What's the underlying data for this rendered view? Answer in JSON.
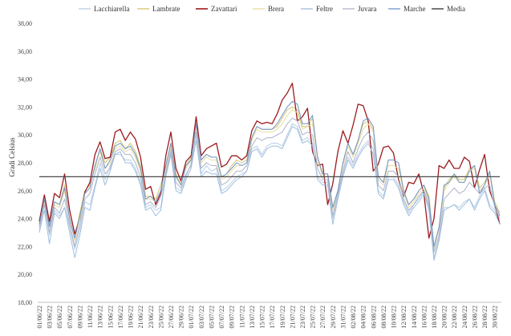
{
  "chart_data": {
    "type": "line",
    "ylabel": "Gradi Celsius",
    "ylim": [
      18,
      38
    ],
    "ytick_values": [
      18,
      20,
      22,
      24,
      26,
      28,
      30,
      32,
      34,
      36,
      38
    ],
    "ytick_labels": [
      "18,00",
      "20,00",
      "22,00",
      "24,00",
      "26,00",
      "28,00",
      "30,00",
      "32,00",
      "34,00",
      "36,00",
      "38,00"
    ],
    "grid": false,
    "legend_position": "top",
    "x": [
      "01/06/22",
      "02/06/22",
      "03/06/22",
      "04/06/22",
      "05/06/22",
      "06/06/22",
      "07/06/22",
      "08/06/22",
      "09/06/22",
      "10/06/22",
      "11/06/22",
      "12/06/22",
      "13/06/22",
      "14/06/22",
      "15/06/22",
      "16/06/22",
      "17/06/22",
      "18/06/22",
      "19/06/22",
      "20/06/22",
      "21/06/22",
      "22/06/22",
      "23/06/22",
      "24/06/22",
      "25/06/22",
      "26/06/22",
      "27/06/22",
      "28/06/22",
      "29/06/22",
      "30/06/22",
      "01/07/22",
      "02/07/22",
      "03/07/22",
      "04/07/22",
      "05/07/22",
      "06/07/22",
      "07/07/22",
      "08/07/22",
      "09/07/22",
      "10/07/22",
      "11/07/22",
      "12/07/22",
      "13/07/22",
      "14/07/22",
      "15/07/22",
      "16/07/22",
      "17/07/22",
      "18/07/22",
      "19/07/22",
      "20/07/22",
      "21/07/22",
      "22/07/22",
      "23/07/22",
      "24/07/22",
      "25/07/22",
      "26/07/22",
      "27/07/22",
      "28/07/22",
      "29/07/22",
      "30/07/22",
      "31/07/22",
      "01/08/22",
      "02/08/22",
      "03/08/22",
      "04/08/22",
      "05/08/22",
      "06/08/22",
      "07/08/22",
      "08/08/22",
      "09/08/22",
      "10/08/22",
      "11/08/22",
      "12/08/22",
      "13/08/22",
      "14/08/22",
      "15/08/22",
      "16/08/22",
      "17/08/22",
      "18/08/22",
      "19/08/22",
      "20/08/22",
      "21/08/22",
      "22/08/22",
      "23/08/22",
      "24/08/22",
      "25/08/22",
      "26/08/22",
      "27/08/22",
      "28/08/22",
      "29/08/22",
      "30/08/22",
      "31/08/22"
    ],
    "xtick_labels": [
      "01/06/22",
      "03/06/22",
      "05/06/22",
      "07/06/22",
      "09/06/22",
      "11/06/22",
      "13/06/22",
      "15/06/22",
      "17/06/22",
      "19/06/22",
      "21/06/22",
      "23/06/22",
      "25/06/22",
      "27/06/22",
      "29/06/22",
      "01/07/22",
      "03/07/22",
      "05/07/22",
      "07/07/22",
      "09/07/22",
      "11/07/22",
      "13/07/22",
      "15/07/22",
      "17/07/22",
      "19/07/22",
      "21/07/22",
      "23/07/22",
      "25/07/22",
      "27/07/22",
      "29/07/22",
      "31/07/22",
      "02/08/22",
      "04/08/22",
      "06/08/22",
      "08/08/22",
      "10/08/22",
      "12/08/22",
      "14/08/22",
      "16/08/22",
      "18/08/22",
      "20/08/22",
      "22/08/22",
      "24/08/22",
      "26/08/22",
      "28/08/22",
      "30/08/22"
    ],
    "series": [
      {
        "name": "Lacchiarella",
        "color": "#b9cde4",
        "width": 1,
        "values": [
          23.2,
          25.0,
          22.8,
          24.6,
          24.2,
          24.8,
          23.4,
          21.8,
          23.2,
          25.2,
          25.0,
          26.4,
          28.0,
          26.8,
          27.8,
          28.6,
          28.6,
          28.2,
          28.2,
          27.6,
          26.6,
          24.8,
          25.0,
          24.6,
          24.8,
          27.4,
          29.0,
          26.2,
          26.0,
          27.0,
          28.0,
          30.0,
          27.2,
          27.8,
          27.4,
          27.6,
          26.0,
          26.2,
          26.6,
          27.0,
          27.2,
          27.4,
          29.0,
          29.2,
          28.6,
          29.2,
          29.4,
          29.4,
          29.2,
          30.0,
          30.8,
          30.6,
          29.6,
          29.8,
          29.4,
          27.0,
          26.6,
          26.6,
          24.0,
          25.6,
          27.2,
          28.4,
          27.8,
          28.6,
          29.2,
          29.6,
          29.0,
          26.0,
          25.6,
          27.0,
          27.0,
          26.4,
          25.2,
          24.4,
          25.0,
          25.4,
          26.0,
          24.8,
          21.2,
          22.6,
          24.8,
          24.8,
          25.0,
          24.8,
          25.2,
          25.4,
          24.8,
          25.6,
          26.2,
          25.0,
          24.6,
          23.8
        ]
      },
      {
        "name": "Lambrate",
        "color": "#d0c46e",
        "width": 1,
        "values": [
          23.8,
          25.4,
          23.6,
          25.2,
          25.0,
          26.4,
          24.0,
          22.6,
          24.4,
          26.0,
          26.4,
          27.6,
          29.0,
          28.0,
          28.4,
          29.4,
          29.6,
          29.0,
          29.4,
          28.8,
          27.8,
          25.6,
          25.6,
          25.4,
          26.4,
          27.8,
          29.4,
          27.2,
          26.4,
          27.8,
          28.4,
          30.8,
          28.2,
          28.6,
          28.4,
          28.4,
          27.0,
          27.2,
          27.8,
          28.2,
          28.0,
          28.2,
          29.8,
          30.6,
          30.4,
          30.4,
          30.4,
          30.6,
          31.2,
          31.8,
          32.0,
          31.8,
          30.6,
          30.6,
          31.2,
          28.4,
          27.2,
          27.2,
          24.8,
          26.0,
          28.0,
          29.4,
          28.6,
          29.6,
          30.8,
          31.0,
          30.4,
          27.0,
          26.6,
          28.2,
          28.2,
          28.0,
          26.0,
          25.0,
          25.4,
          26.0,
          26.4,
          25.6,
          22.0,
          23.4,
          26.2,
          26.8,
          27.2,
          26.8,
          26.8,
          27.6,
          27.8,
          26.2,
          26.6,
          27.4,
          25.2,
          24.4
        ]
      },
      {
        "name": "Zavattari",
        "color": "#9c1a1e",
        "width": 1.3,
        "values": [
          23.8,
          25.7,
          23.8,
          25.8,
          25.5,
          27.2,
          24.6,
          22.9,
          24.0,
          25.9,
          26.6,
          28.6,
          29.5,
          28.3,
          28.4,
          30.2,
          30.4,
          29.6,
          30.2,
          29.7,
          28.4,
          26.1,
          26.3,
          25.0,
          25.8,
          28.5,
          30.2,
          27.6,
          26.7,
          28.1,
          28.5,
          31.3,
          28.5,
          29.0,
          29.2,
          29.4,
          27.7,
          27.9,
          28.5,
          28.5,
          28.2,
          28.5,
          30.3,
          31.0,
          30.8,
          30.9,
          30.8,
          31.5,
          32.5,
          33.0,
          33.7,
          31.0,
          31.3,
          31.9,
          28.8,
          27.8,
          27.9,
          25.0,
          26.5,
          28.8,
          30.3,
          29.4,
          30.7,
          32.2,
          32.1,
          31.0,
          27.4,
          27.9,
          29.1,
          29.2,
          28.7,
          26.8,
          25.6,
          26.6,
          26.5,
          27.2,
          25.8,
          22.6,
          24.0,
          27.8,
          27.6,
          28.2,
          27.6,
          27.6,
          28.4,
          28.1,
          26.2,
          27.5,
          28.6,
          26.0,
          25.0,
          23.6
        ]
      },
      {
        "name": "Brera",
        "color": "#e9dca0",
        "width": 1,
        "values": [
          23.6,
          25.2,
          23.4,
          25.0,
          24.8,
          26.0,
          24.0,
          22.4,
          24.0,
          25.8,
          26.2,
          27.8,
          28.8,
          27.6,
          28.0,
          29.0,
          29.2,
          28.8,
          29.0,
          28.4,
          27.4,
          25.4,
          25.4,
          25.2,
          26.0,
          27.6,
          29.2,
          27.0,
          26.6,
          27.6,
          28.2,
          30.6,
          28.0,
          28.4,
          28.2,
          28.2,
          26.8,
          27.0,
          27.4,
          27.8,
          27.8,
          28.0,
          29.6,
          30.4,
          30.2,
          30.2,
          30.2,
          30.4,
          30.8,
          31.4,
          31.8,
          31.6,
          30.4,
          30.6,
          30.8,
          28.2,
          27.0,
          27.0,
          24.6,
          26.0,
          27.8,
          29.2,
          28.4,
          29.4,
          30.4,
          30.8,
          30.2,
          26.8,
          26.4,
          27.8,
          27.8,
          27.6,
          25.8,
          24.8,
          25.2,
          25.8,
          26.2,
          25.2,
          21.8,
          23.2,
          26.0,
          26.6,
          27.0,
          26.6,
          26.6,
          27.4,
          27.6,
          26.0,
          26.4,
          27.2,
          25.0,
          24.2
        ]
      },
      {
        "name": "Feltre",
        "color": "#9dbde0",
        "width": 1,
        "values": [
          23.0,
          24.6,
          22.2,
          24.4,
          24.0,
          24.8,
          23.0,
          21.2,
          22.8,
          24.8,
          24.6,
          26.2,
          27.6,
          26.4,
          27.4,
          28.6,
          28.8,
          28.0,
          28.0,
          27.4,
          26.4,
          24.6,
          24.8,
          24.2,
          24.6,
          27.0,
          28.6,
          26.0,
          25.8,
          26.8,
          27.6,
          29.6,
          27.0,
          27.4,
          27.2,
          27.2,
          25.8,
          26.0,
          26.4,
          26.8,
          27.0,
          27.4,
          28.8,
          29.0,
          28.4,
          29.0,
          29.2,
          29.2,
          29.0,
          29.8,
          30.6,
          30.4,
          29.4,
          29.6,
          29.2,
          26.8,
          26.4,
          26.4,
          23.6,
          25.4,
          27.0,
          28.2,
          27.6,
          28.4,
          29.0,
          29.4,
          28.6,
          25.8,
          25.4,
          26.8,
          26.8,
          26.2,
          25.0,
          24.2,
          24.8,
          25.2,
          25.8,
          24.6,
          21.0,
          22.4,
          24.6,
          24.8,
          25.0,
          24.6,
          25.0,
          25.4,
          24.6,
          25.4,
          26.0,
          24.8,
          24.4,
          23.6
        ]
      },
      {
        "name": "Juvara",
        "color": "#adb3c8",
        "width": 1,
        "values": [
          23.4,
          25.0,
          23.0,
          24.8,
          24.4,
          25.4,
          23.6,
          22.0,
          23.6,
          25.4,
          25.8,
          27.2,
          28.4,
          27.2,
          27.6,
          28.8,
          29.0,
          28.6,
          28.6,
          28.0,
          27.0,
          25.0,
          25.2,
          24.8,
          25.6,
          27.2,
          28.8,
          26.6,
          26.2,
          27.2,
          27.8,
          30.2,
          27.6,
          28.0,
          27.8,
          27.8,
          26.4,
          26.6,
          27.0,
          27.4,
          27.4,
          27.8,
          29.2,
          29.8,
          29.6,
          29.8,
          29.8,
          30.0,
          30.2,
          30.8,
          31.2,
          31.0,
          30.0,
          30.2,
          30.0,
          27.6,
          26.8,
          26.8,
          24.2,
          25.8,
          27.4,
          28.8,
          28.0,
          29.0,
          29.8,
          30.2,
          29.6,
          26.4,
          26.0,
          27.4,
          27.4,
          27.0,
          25.4,
          24.6,
          25.0,
          25.6,
          26.0,
          25.0,
          21.6,
          22.8,
          25.4,
          25.8,
          26.2,
          25.8,
          26.0,
          26.6,
          26.2,
          25.8,
          26.2,
          26.4,
          24.8,
          24.0
        ]
      },
      {
        "name": "Marche",
        "color": "#6f95c9",
        "width": 1,
        "values": [
          23.6,
          25.4,
          23.4,
          25.2,
          25.0,
          26.2,
          24.0,
          22.6,
          24.2,
          25.8,
          26.2,
          27.8,
          29.0,
          27.6,
          28.2,
          29.2,
          29.4,
          29.0,
          29.2,
          28.6,
          27.6,
          25.4,
          25.6,
          25.2,
          26.0,
          27.8,
          29.4,
          27.0,
          26.4,
          27.8,
          28.2,
          30.8,
          28.2,
          28.6,
          28.4,
          28.4,
          27.0,
          27.2,
          27.6,
          28.0,
          27.8,
          28.0,
          29.8,
          30.6,
          30.4,
          30.4,
          30.4,
          30.8,
          31.4,
          32.0,
          32.4,
          32.2,
          30.8,
          30.8,
          31.4,
          28.4,
          27.2,
          27.2,
          24.8,
          26.0,
          28.0,
          29.4,
          28.6,
          29.6,
          31.0,
          31.2,
          30.6,
          27.0,
          26.6,
          28.2,
          28.2,
          28.0,
          26.0,
          25.0,
          25.4,
          26.0,
          26.4,
          25.4,
          22.0,
          23.4,
          26.4,
          26.6,
          27.2,
          26.6,
          26.6,
          27.4,
          27.8,
          25.8,
          26.4,
          27.4,
          25.0,
          24.2
        ]
      },
      {
        "name": "Media",
        "color": "#4a4a4a",
        "width": 1.2,
        "values": [
          27.0,
          27.0,
          27.0,
          27.0,
          27.0,
          27.0,
          27.0,
          27.0,
          27.0,
          27.0,
          27.0,
          27.0,
          27.0,
          27.0,
          27.0,
          27.0,
          27.0,
          27.0,
          27.0,
          27.0,
          27.0,
          27.0,
          27.0,
          27.0,
          27.0,
          27.0,
          27.0,
          27.0,
          27.0,
          27.0,
          27.0,
          27.0,
          27.0,
          27.0,
          27.0,
          27.0,
          27.0,
          27.0,
          27.0,
          27.0,
          27.0,
          27.0,
          27.0,
          27.0,
          27.0,
          27.0,
          27.0,
          27.0,
          27.0,
          27.0,
          27.0,
          27.0,
          27.0,
          27.0,
          27.0,
          27.0,
          27.0,
          27.0,
          27.0,
          27.0,
          27.0,
          27.0,
          27.0,
          27.0,
          27.0,
          27.0,
          27.0,
          27.0,
          27.0,
          27.0,
          27.0,
          27.0,
          27.0,
          27.0,
          27.0,
          27.0,
          27.0,
          27.0,
          27.0,
          27.0,
          27.0,
          27.0,
          27.0,
          27.0,
          27.0,
          27.0,
          27.0,
          27.0,
          27.0,
          27.0,
          27.0,
          27.0
        ]
      }
    ]
  }
}
